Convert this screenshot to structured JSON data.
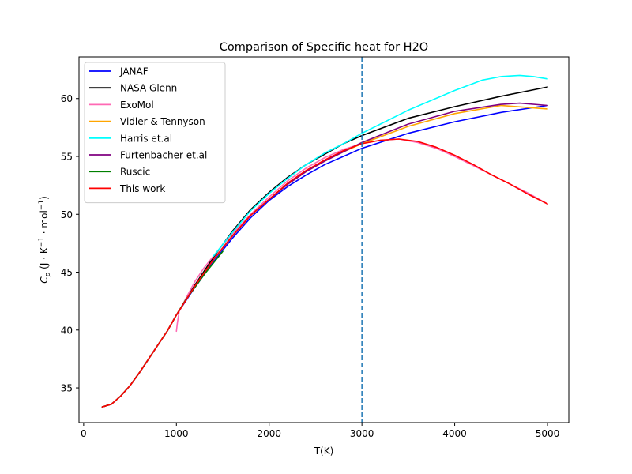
{
  "chart_data": {
    "type": "line",
    "title": "Comparison of Specific heat for H2O",
    "xlabel": "T(K)",
    "ylabel_parts": [
      "C",
      "p",
      " (J · K",
      "−1",
      " · mol",
      "−1",
      ")"
    ],
    "xlim": [
      -50,
      5230
    ],
    "ylim": [
      32,
      63.6
    ],
    "xticks": [
      0,
      1000,
      2000,
      3000,
      4000,
      5000
    ],
    "yticks": [
      35,
      40,
      45,
      50,
      55,
      60
    ],
    "grid": false,
    "legend_position": "top-left",
    "vline": {
      "x": 3000,
      "color": "#1f77b4",
      "style": "dashed"
    },
    "series": [
      {
        "name": "JANAF",
        "color": "#0000ff",
        "points": [
          [
            200,
            33.35
          ],
          [
            300,
            33.6
          ],
          [
            400,
            34.3
          ],
          [
            500,
            35.2
          ],
          [
            600,
            36.3
          ],
          [
            700,
            37.5
          ],
          [
            800,
            38.7
          ],
          [
            900,
            39.9
          ],
          [
            1000,
            41.3
          ],
          [
            1200,
            43.7
          ],
          [
            1400,
            45.9
          ],
          [
            1600,
            47.9
          ],
          [
            1800,
            49.7
          ],
          [
            2000,
            51.2
          ],
          [
            2200,
            52.4
          ],
          [
            2400,
            53.4
          ],
          [
            2600,
            54.3
          ],
          [
            2800,
            55.0
          ],
          [
            3000,
            55.7
          ],
          [
            3500,
            57.0
          ],
          [
            4000,
            58.0
          ],
          [
            4500,
            58.8
          ],
          [
            5000,
            59.4
          ]
        ]
      },
      {
        "name": "NASA Glenn",
        "color": "#000000",
        "points": [
          [
            200,
            33.35
          ],
          [
            300,
            33.6
          ],
          [
            400,
            34.3
          ],
          [
            500,
            35.2
          ],
          [
            600,
            36.3
          ],
          [
            700,
            37.5
          ],
          [
            800,
            38.7
          ],
          [
            900,
            39.9
          ],
          [
            1000,
            41.3
          ],
          [
            1200,
            43.9
          ],
          [
            1400,
            46.3
          ],
          [
            1600,
            48.5
          ],
          [
            1800,
            50.4
          ],
          [
            2000,
            51.9
          ],
          [
            2200,
            53.2
          ],
          [
            2400,
            54.3
          ],
          [
            2600,
            55.2
          ],
          [
            2800,
            56.1
          ],
          [
            3000,
            56.8
          ],
          [
            3500,
            58.3
          ],
          [
            4000,
            59.3
          ],
          [
            4500,
            60.2
          ],
          [
            5000,
            61.0
          ]
        ]
      },
      {
        "name": "ExoMol",
        "color": "#ff69b4",
        "points": [
          [
            1000,
            39.9
          ],
          [
            1010,
            40.6
          ],
          [
            1030,
            41.6
          ],
          [
            1100,
            42.7
          ],
          [
            1200,
            44.2
          ],
          [
            1300,
            45.4
          ],
          [
            1400,
            46.4
          ],
          [
            1600,
            48.3
          ],
          [
            1800,
            50.0
          ],
          [
            2000,
            51.5
          ],
          [
            2200,
            52.9
          ],
          [
            2400,
            54.0
          ],
          [
            2600,
            54.9
          ],
          [
            2800,
            55.6
          ],
          [
            3000,
            56.1
          ],
          [
            3200,
            56.4
          ],
          [
            3400,
            56.5
          ],
          [
            3600,
            56.2
          ],
          [
            3800,
            55.7
          ],
          [
            4000,
            55.0
          ],
          [
            4200,
            54.2
          ],
          [
            4400,
            53.4
          ],
          [
            4600,
            52.6
          ],
          [
            4800,
            51.8
          ],
          [
            5000,
            50.9
          ]
        ]
      },
      {
        "name": "Vidler & Tennyson",
        "color": "#ffa500",
        "points": [
          [
            200,
            33.35
          ],
          [
            300,
            33.6
          ],
          [
            400,
            34.3
          ],
          [
            500,
            35.2
          ],
          [
            600,
            36.3
          ],
          [
            700,
            37.5
          ],
          [
            800,
            38.7
          ],
          [
            900,
            39.9
          ],
          [
            1000,
            41.3
          ],
          [
            1200,
            43.8
          ],
          [
            1400,
            46.1
          ],
          [
            1600,
            48.1
          ],
          [
            1800,
            49.9
          ],
          [
            2000,
            51.3
          ],
          [
            2200,
            52.6
          ],
          [
            2400,
            53.7
          ],
          [
            2600,
            54.6
          ],
          [
            2800,
            55.4
          ],
          [
            3000,
            56.1
          ],
          [
            3500,
            57.6
          ],
          [
            4000,
            58.7
          ],
          [
            4500,
            59.4
          ],
          [
            5000,
            59.1
          ]
        ]
      },
      {
        "name": "Harris et.al",
        "color": "#00ffff",
        "points": [
          [
            1400,
            46.4
          ],
          [
            1600,
            48.4
          ],
          [
            1800,
            50.3
          ],
          [
            2000,
            51.8
          ],
          [
            2200,
            53.1
          ],
          [
            2400,
            54.3
          ],
          [
            2600,
            55.3
          ],
          [
            2800,
            56.1
          ],
          [
            3000,
            57.0
          ],
          [
            3200,
            57.8
          ],
          [
            3500,
            59.0
          ],
          [
            4000,
            60.7
          ],
          [
            4300,
            61.6
          ],
          [
            4500,
            61.9
          ],
          [
            4700,
            62.0
          ],
          [
            4850,
            61.9
          ],
          [
            5000,
            61.7
          ]
        ]
      },
      {
        "name": "Furtenbacher et.al",
        "color": "#800080",
        "points": [
          [
            200,
            33.35
          ],
          [
            300,
            33.6
          ],
          [
            400,
            34.3
          ],
          [
            500,
            35.2
          ],
          [
            600,
            36.3
          ],
          [
            700,
            37.5
          ],
          [
            800,
            38.7
          ],
          [
            900,
            39.9
          ],
          [
            1000,
            41.3
          ],
          [
            1200,
            43.8
          ],
          [
            1400,
            46.1
          ],
          [
            1600,
            48.1
          ],
          [
            1800,
            49.9
          ],
          [
            2000,
            51.3
          ],
          [
            2200,
            52.6
          ],
          [
            2400,
            53.7
          ],
          [
            2600,
            54.6
          ],
          [
            2800,
            55.4
          ],
          [
            3000,
            56.2
          ],
          [
            3500,
            57.8
          ],
          [
            4000,
            58.9
          ],
          [
            4500,
            59.5
          ],
          [
            4700,
            59.6
          ],
          [
            5000,
            59.4
          ]
        ]
      },
      {
        "name": "Ruscic",
        "color": "#008000",
        "points": [
          [
            200,
            33.35
          ],
          [
            300,
            33.6
          ],
          [
            400,
            34.3
          ],
          [
            500,
            35.2
          ],
          [
            600,
            36.3
          ],
          [
            700,
            37.5
          ],
          [
            800,
            38.7
          ],
          [
            900,
            39.9
          ],
          [
            1000,
            41.3
          ],
          [
            1100,
            42.6
          ],
          [
            1200,
            43.7
          ],
          [
            1300,
            44.8
          ],
          [
            1400,
            45.8
          ],
          [
            1500,
            46.8
          ]
        ]
      },
      {
        "name": "This work",
        "color": "#ff0000",
        "points": [
          [
            200,
            33.35
          ],
          [
            300,
            33.6
          ],
          [
            400,
            34.3
          ],
          [
            500,
            35.2
          ],
          [
            600,
            36.3
          ],
          [
            700,
            37.5
          ],
          [
            800,
            38.7
          ],
          [
            900,
            39.9
          ],
          [
            1000,
            41.3
          ],
          [
            1200,
            43.8
          ],
          [
            1400,
            46.1
          ],
          [
            1600,
            48.1
          ],
          [
            1800,
            49.9
          ],
          [
            2000,
            51.3
          ],
          [
            2200,
            52.7
          ],
          [
            2400,
            53.8
          ],
          [
            2600,
            54.7
          ],
          [
            2800,
            55.5
          ],
          [
            3000,
            56.1
          ],
          [
            3200,
            56.4
          ],
          [
            3400,
            56.5
          ],
          [
            3600,
            56.3
          ],
          [
            3800,
            55.8
          ],
          [
            4000,
            55.1
          ],
          [
            4200,
            54.3
          ],
          [
            4400,
            53.4
          ],
          [
            4600,
            52.6
          ],
          [
            4800,
            51.7
          ],
          [
            5000,
            50.9
          ]
        ]
      }
    ]
  }
}
